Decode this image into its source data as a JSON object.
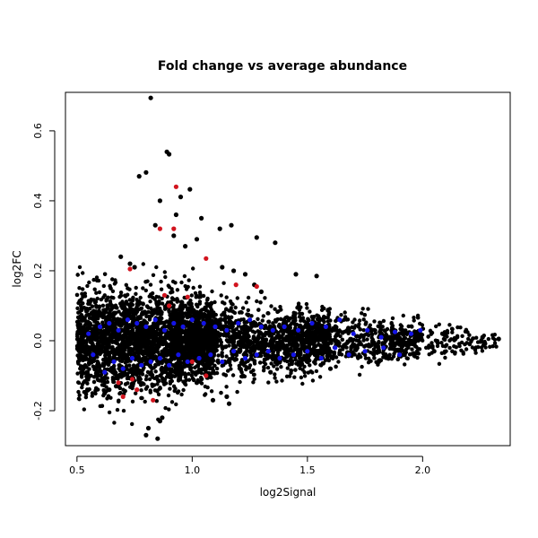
{
  "chart_data": {
    "type": "scatter",
    "title": "Fold change vs average abundance",
    "xlabel": "log2Signal",
    "ylabel": "log2FC",
    "xlim": [
      0.45,
      2.38
    ],
    "ylim": [
      -0.3,
      0.71
    ],
    "x_ticks": [
      0.5,
      1.0,
      1.5,
      2.0
    ],
    "x_tick_labels": [
      "0.5",
      "1.0",
      "1.5",
      "2.0"
    ],
    "y_ticks": [
      -0.2,
      0.0,
      0.2,
      0.4,
      0.6
    ],
    "y_tick_labels": [
      "-0.2",
      "0.0",
      "0.2",
      "0.4",
      "0.6"
    ],
    "grid": false,
    "legend": "none",
    "series": [
      {
        "color": "#000000",
        "x": [
          0.82,
          0.89,
          0.9,
          0.8,
          0.95,
          0.99,
          0.77,
          0.86,
          0.93,
          1.04,
          0.84,
          0.92,
          1.02,
          0.97,
          1.17,
          1.12,
          1.28,
          1.36,
          0.69,
          0.73,
          0.75,
          1.13,
          1.18,
          1.23,
          1.45,
          1.54,
          1.27,
          1.3,
          0.85,
          0.8,
          0.86,
          0.81,
          0.87,
          1.09,
          1.15,
          1.16,
          0.62,
          0.64,
          0.67,
          1.02,
          1.22,
          1.34,
          1.6,
          1.81,
          1.92,
          2.05,
          2.26,
          2.33
        ],
        "y": [
          0.694,
          0.54,
          0.533,
          0.481,
          0.411,
          0.433,
          0.47,
          0.4,
          0.36,
          0.35,
          0.33,
          0.3,
          0.29,
          0.27,
          0.33,
          0.32,
          0.295,
          0.28,
          0.24,
          0.22,
          0.21,
          0.21,
          0.2,
          0.19,
          0.19,
          0.185,
          0.16,
          0.14,
          -0.28,
          -0.27,
          -0.23,
          -0.25,
          -0.22,
          -0.17,
          -0.16,
          -0.18,
          -0.15,
          -0.14,
          -0.13,
          -0.12,
          -0.1,
          -0.09,
          -0.08,
          -0.06,
          -0.04,
          -0.03,
          0.01,
          0.005
        ]
      },
      {
        "color": "#d2141e",
        "x": [
          0.93,
          0.86,
          0.92,
          0.73,
          1.28,
          1.19,
          1.06,
          0.88,
          0.98,
          0.9,
          0.74,
          0.7,
          0.68,
          0.83,
          0.76,
          1.06,
          1.0
        ],
        "y": [
          0.44,
          0.32,
          0.32,
          0.205,
          0.155,
          0.16,
          0.235,
          0.13,
          0.125,
          0.1,
          -0.11,
          -0.16,
          -0.12,
          -0.17,
          -0.14,
          -0.1,
          -0.06
        ]
      },
      {
        "color": "#1414e6",
        "x": [
          0.55,
          0.6,
          0.64,
          0.68,
          0.72,
          0.76,
          0.8,
          0.84,
          0.88,
          0.92,
          0.96,
          1.0,
          1.05,
          1.1,
          1.15,
          1.2,
          1.25,
          1.3,
          1.35,
          1.4,
          1.46,
          1.52,
          1.58,
          1.64,
          1.7,
          1.76,
          1.82,
          1.88,
          1.95,
          1.99,
          0.57,
          0.62,
          0.66,
          0.7,
          0.74,
          0.78,
          0.82,
          0.86,
          0.9,
          0.94,
          0.98,
          1.03,
          1.08,
          1.13,
          1.18,
          1.23,
          1.28,
          1.33,
          1.38,
          1.44,
          1.5,
          1.56,
          1.62,
          1.68,
          1.75,
          1.83,
          1.9
        ],
        "y": [
          0.02,
          0.04,
          0.05,
          0.03,
          0.06,
          0.05,
          0.04,
          0.06,
          0.03,
          0.05,
          0.04,
          0.06,
          0.05,
          0.04,
          0.03,
          0.05,
          0.06,
          0.04,
          0.03,
          0.04,
          0.03,
          0.05,
          0.04,
          0.06,
          0.02,
          0.03,
          0.01,
          0.025,
          0.02,
          0.03,
          -0.04,
          -0.09,
          -0.06,
          -0.08,
          -0.05,
          -0.07,
          -0.06,
          -0.05,
          -0.07,
          -0.04,
          -0.06,
          -0.05,
          -0.04,
          -0.06,
          -0.03,
          -0.05,
          -0.04,
          -0.03,
          -0.05,
          -0.04,
          -0.03,
          -0.05,
          -0.02,
          -0.04,
          -0.03,
          -0.02,
          -0.04
        ]
      }
    ]
  }
}
